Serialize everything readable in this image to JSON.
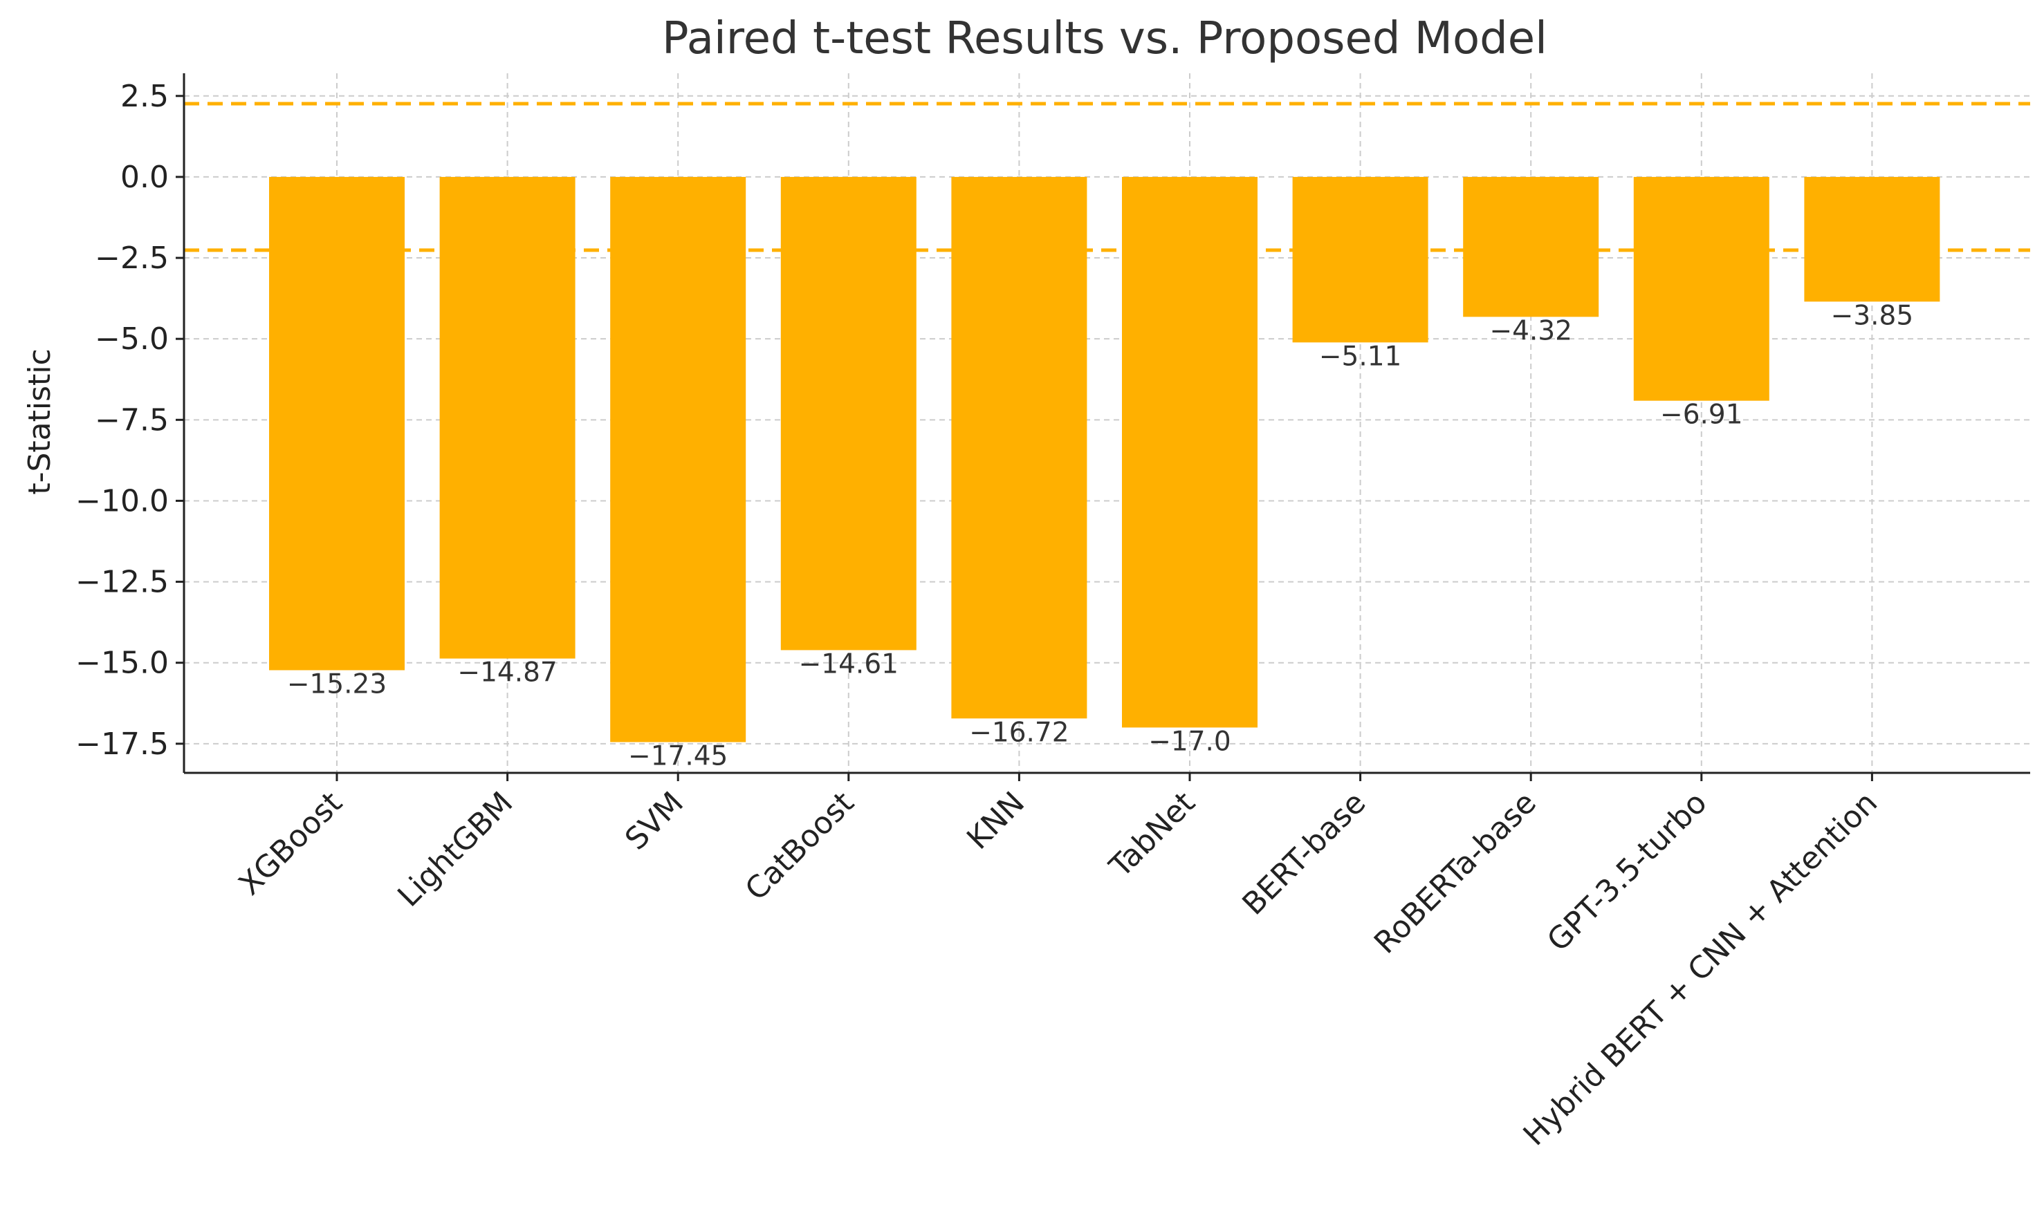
{
  "chart_data": {
    "type": "bar",
    "title": "Paired t-test Results vs. Proposed Model",
    "xlabel": "",
    "ylabel": "t-Statistic",
    "categories": [
      "XGBoost",
      "LightGBM",
      "SVM",
      "CatBoost",
      "KNN",
      "TabNet",
      "BERT-base",
      "RoBERTa-base",
      "GPT-3.5-turbo",
      "Hybrid BERT + CNN + Attention"
    ],
    "values": [
      -15.23,
      -14.87,
      -17.45,
      -14.61,
      -16.72,
      -17.0,
      -5.11,
      -4.32,
      -6.91,
      -3.85
    ],
    "data_labels": [
      "−15.23",
      "−14.87",
      "−17.45",
      "−14.61",
      "−16.72",
      "−17.0",
      "−5.11",
      "−4.32",
      "−6.91",
      "−3.85"
    ],
    "ylim": [
      -18.4,
      3.2
    ],
    "yticks": [
      2.5,
      0.0,
      -2.5,
      -5.0,
      -7.5,
      -10.0,
      -12.5,
      -15.0,
      -17.5
    ],
    "ytick_labels": [
      "2.5",
      "0.0",
      "−2.5",
      "−5.0",
      "−7.5",
      "−10.0",
      "−12.5",
      "−15.0",
      "−17.5"
    ],
    "reference_lines": [
      2.262,
      -2.262
    ],
    "bar_color": "#FFB000",
    "reference_line_color": "#FFB000",
    "grid": true
  }
}
